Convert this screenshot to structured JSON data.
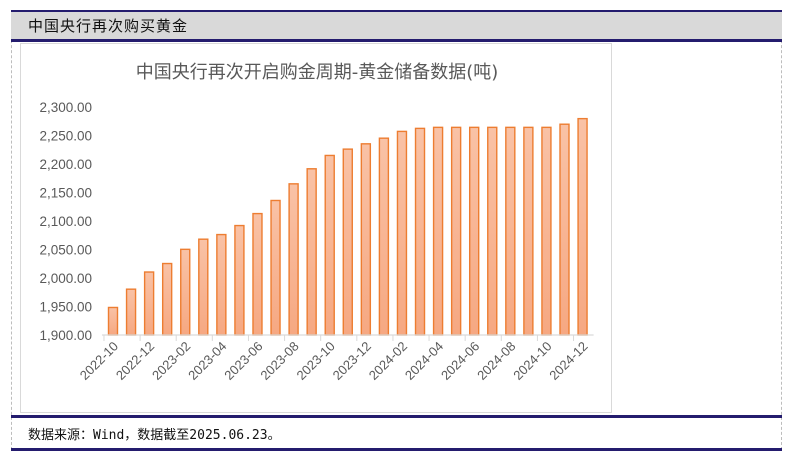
{
  "header": {
    "title": "中国央行再次购买黄金"
  },
  "footer": {
    "source": "数据来源：Wind，数据截至2025.06.23。"
  },
  "colors": {
    "bar_fill": "#f8b595",
    "bar_stroke": "#ed7d31",
    "header_bg": "#d9d9d9",
    "rule": "#241c6e",
    "axis_text": "#595959",
    "grid": "#d9d9d9"
  },
  "chart_data": {
    "type": "bar",
    "title": "中国央行再次开启购金周期-黄金储备数据(吨)",
    "xlabel": "",
    "ylabel": "",
    "ylim": [
      1900,
      2300
    ],
    "yticks": [
      1900,
      1950,
      2000,
      2050,
      2100,
      2150,
      2200,
      2250,
      2300
    ],
    "ytick_labels": [
      "1,900.00",
      "1,950.00",
      "2,000.00",
      "2,050.00",
      "2,100.00",
      "2,150.00",
      "2,200.00",
      "2,250.00",
      "2,300.00"
    ],
    "grid": false,
    "legend": null,
    "categories": [
      "2022-10",
      "2022-11",
      "2022-12",
      "2023-01",
      "2023-02",
      "2023-03",
      "2023-04",
      "2023-05",
      "2023-06",
      "2023-07",
      "2023-08",
      "2023-09",
      "2023-10",
      "2023-11",
      "2023-12",
      "2024-01",
      "2024-02",
      "2024-03",
      "2024-04",
      "2024-05",
      "2024-06",
      "2024-07",
      "2024-08",
      "2024-09",
      "2024-10",
      "2024-11",
      "2024-12"
    ],
    "xtick_labels": [
      "2022-10",
      "2022-12",
      "2023-02",
      "2023-04",
      "2023-06",
      "2023-08",
      "2023-10",
      "2023-12",
      "2024-02",
      "2024-04",
      "2024-06",
      "2024-08",
      "2024-10",
      "2024-12"
    ],
    "values": [
      1948.3,
      1980.4,
      2010.5,
      2025.4,
      2050.3,
      2068.1,
      2076.2,
      2092.0,
      2113.0,
      2136.0,
      2165.2,
      2191.6,
      2215.0,
      2226.1,
      2235.4,
      2245.3,
      2257.2,
      2262.5,
      2264.3,
      2264.3,
      2264.3,
      2264.3,
      2264.3,
      2264.3,
      2264.3,
      2269.8,
      2279.6
    ]
  }
}
